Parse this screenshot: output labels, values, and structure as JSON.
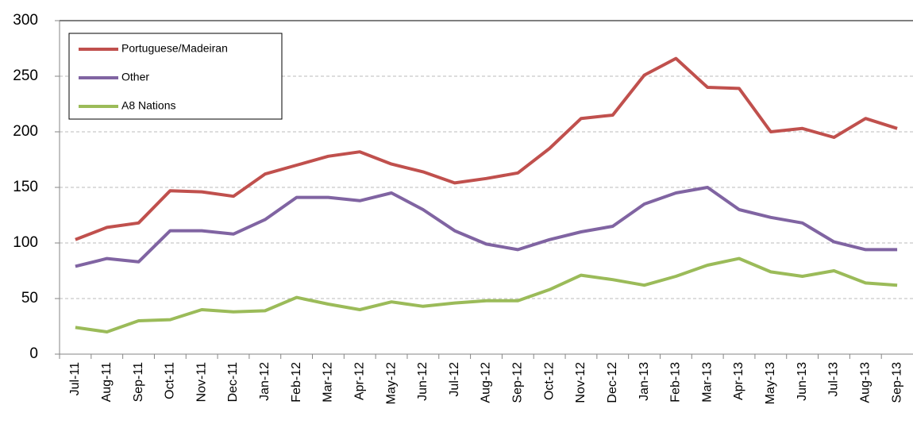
{
  "chart_data": {
    "type": "line",
    "categories": [
      "Jul-11",
      "Aug-11",
      "Sep-11",
      "Oct-11",
      "Nov-11",
      "Dec-11",
      "Jan-12",
      "Feb-12",
      "Mar-12",
      "Apr-12",
      "May-12",
      "Jun-12",
      "Jul-12",
      "Aug-12",
      "Sep-12",
      "Oct-12",
      "Nov-12",
      "Dec-12",
      "Jan-13",
      "Feb-13",
      "Mar-13",
      "Apr-13",
      "May-13",
      "Jun-13",
      "Jul-13",
      "Aug-13",
      "Sep-13"
    ],
    "series": [
      {
        "name": "Portuguese/Madeiran",
        "color": "#c0504d",
        "values": [
          103,
          114,
          118,
          147,
          146,
          142,
          162,
          170,
          178,
          182,
          171,
          164,
          154,
          158,
          163,
          185,
          212,
          215,
          251,
          266,
          240,
          239,
          200,
          203,
          195,
          212,
          203
        ]
      },
      {
        "name": "Other",
        "color": "#8064a2",
        "values": [
          79,
          86,
          83,
          111,
          111,
          108,
          121,
          141,
          141,
          138,
          145,
          130,
          111,
          99,
          94,
          103,
          110,
          115,
          135,
          145,
          150,
          130,
          123,
          118,
          101,
          94,
          94
        ]
      },
      {
        "name": "A8 Nations",
        "color": "#9bbb59",
        "values": [
          24,
          20,
          30,
          31,
          40,
          38,
          39,
          51,
          45,
          40,
          47,
          43,
          46,
          48,
          48,
          58,
          71,
          67,
          62,
          70,
          80,
          86,
          74,
          70,
          75,
          64,
          62
        ]
      }
    ],
    "ylim": [
      0,
      300
    ],
    "yticks": [
      0,
      50,
      100,
      150,
      200,
      250,
      300
    ],
    "grid": true,
    "legend": "top-left"
  }
}
